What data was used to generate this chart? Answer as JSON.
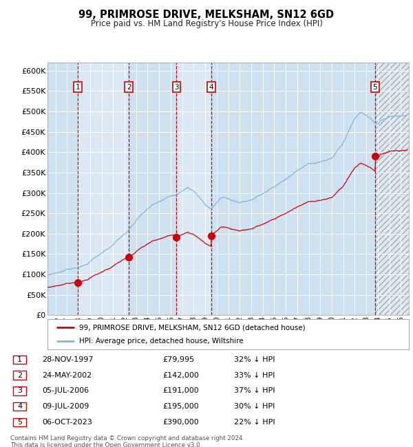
{
  "title": "99, PRIMROSE DRIVE, MELKSHAM, SN12 6GD",
  "subtitle": "Price paid vs. HM Land Registry's House Price Index (HPI)",
  "ylabel_ticks": [
    "£0",
    "£50K",
    "£100K",
    "£150K",
    "£200K",
    "£250K",
    "£300K",
    "£350K",
    "£400K",
    "£450K",
    "£500K",
    "£550K",
    "£600K"
  ],
  "ylim": [
    0,
    620000
  ],
  "xlim_start": 1995.3,
  "xlim_end": 2026.7,
  "background_color": "#ffffff",
  "plot_bg_color": "#dce9f5",
  "grid_color": "#ffffff",
  "sale_dates": [
    1997.91,
    2002.38,
    2006.51,
    2009.52,
    2023.76
  ],
  "sale_prices": [
    79995,
    142000,
    191000,
    195000,
    390000
  ],
  "sale_labels": [
    "1",
    "2",
    "3",
    "4",
    "5"
  ],
  "sale_label_color": "#cc0000",
  "hpi_line_color": "#7ab8d9",
  "price_line_color": "#cc0000",
  "vline_color": "#cc0000",
  "legend_line1": "99, PRIMROSE DRIVE, MELKSHAM, SN12 6GD (detached house)",
  "legend_line2": "HPI: Average price, detached house, Wiltshire",
  "table_rows": [
    [
      "1",
      "28-NOV-1997",
      "£79,995",
      "32% ↓ HPI"
    ],
    [
      "2",
      "24-MAY-2002",
      "£142,000",
      "33% ↓ HPI"
    ],
    [
      "3",
      "05-JUL-2006",
      "£191,000",
      "37% ↓ HPI"
    ],
    [
      "4",
      "09-JUL-2009",
      "£195,000",
      "30% ↓ HPI"
    ],
    [
      "5",
      "06-OCT-2023",
      "£390,000",
      "22% ↓ HPI"
    ]
  ],
  "footer": "Contains HM Land Registry data © Crown copyright and database right 2024.\nThis data is licensed under the Open Government Licence v3.0."
}
